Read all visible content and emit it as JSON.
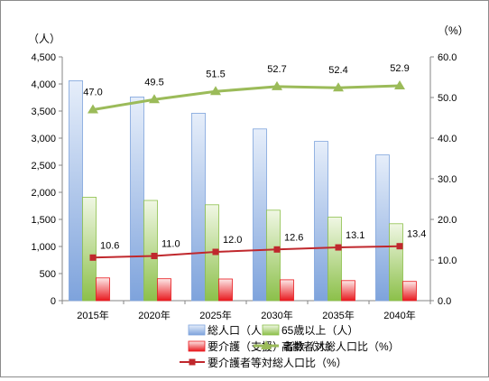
{
  "chart_data": {
    "type": "bar",
    "categories": [
      "2015年",
      "2020年",
      "2025年",
      "2030年",
      "2035年",
      "2040年"
    ],
    "left_unit": "（人）",
    "right_unit": "（%）",
    "left_axis": {
      "ylim": [
        0,
        4500
      ],
      "ticks": [
        "0",
        "500",
        "1,000",
        "1,500",
        "2,000",
        "2,500",
        "3,000",
        "3,500",
        "4,000",
        "4,500"
      ]
    },
    "right_axis": {
      "ylim": [
        0,
        60
      ],
      "ticks": [
        "0.0",
        "10.0",
        "20.0",
        "30.0",
        "40.0",
        "50.0",
        "60.0"
      ]
    },
    "bar_series": [
      {
        "name": "総人口（人）",
        "values": [
          4060,
          3760,
          3460,
          3170,
          2940,
          2690
        ],
        "color_top": "#e6eefa",
        "color_bottom": "#7ea3dc"
      },
      {
        "name": "65歳以上（人）",
        "values": [
          1910,
          1850,
          1770,
          1670,
          1540,
          1420
        ],
        "color_top": "#f0f7e4",
        "color_bottom": "#8cc04a"
      },
      {
        "name": "要介護（支援）者数（人）",
        "values": [
          420,
          405,
          400,
          385,
          370,
          355
        ],
        "color_top": "#fde8e8",
        "color_bottom": "#e8191e"
      }
    ],
    "line_series": [
      {
        "name": "高齢者対総人口比（%）",
        "values": [
          47.0,
          49.5,
          51.5,
          52.7,
          52.4,
          52.9
        ],
        "labels": [
          "47.0",
          "49.5",
          "51.5",
          "52.7",
          "52.4",
          "52.9"
        ],
        "color": "#9bbb59",
        "marker": "triangle"
      },
      {
        "name": "要介護者等対総人口比（%）",
        "values": [
          10.6,
          11.0,
          12.0,
          12.6,
          13.1,
          13.4
        ],
        "labels": [
          "10.6",
          "11.0",
          "12.0",
          "12.6",
          "13.1",
          "13.4"
        ],
        "color": "#c0282d",
        "marker": "square"
      }
    ],
    "legend_position": "bottom",
    "grid": false
  }
}
